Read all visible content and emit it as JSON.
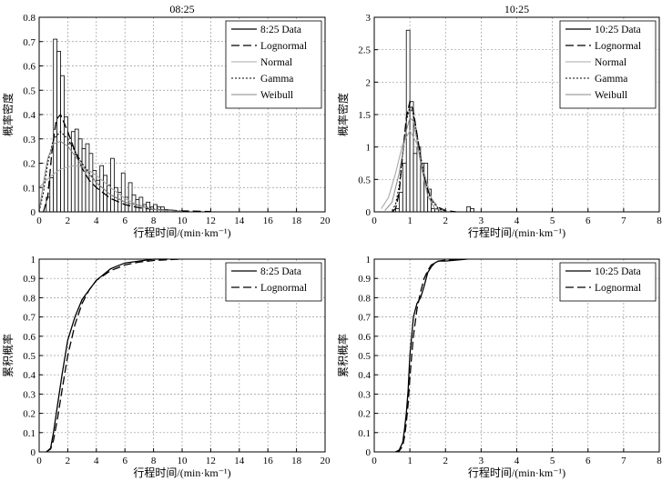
{
  "chart_data": [
    {
      "type": "bar",
      "title": "08:25",
      "xlabel": "行程时间/(min·km⁻¹)",
      "ylabel": "概率密度",
      "xlim": [
        0,
        20
      ],
      "ylim": [
        0,
        0.8
      ],
      "xticks": [
        "0",
        "2",
        "4",
        "6",
        "8",
        "10",
        "12",
        "14",
        "16",
        "18",
        "20"
      ],
      "yticks": [
        "0",
        "0.1",
        "0.2",
        "0.3",
        "0.4",
        "0.5",
        "0.6",
        "0.7",
        "0.8"
      ],
      "grid": true,
      "legend_position": "top-right",
      "legend": [
        "8:25 Data",
        "Lognormal",
        "Normal",
        "Gamma",
        "Weibull"
      ],
      "histogram": {
        "bin_width": 0.25,
        "x_start": 0.5,
        "values": [
          0.06,
          0.14,
          0.71,
          0.66,
          0.56,
          0.39,
          0.28,
          0.33,
          0.34,
          0.3,
          0.26,
          0.28,
          0.24,
          0.17,
          0.13,
          0.19,
          0.15,
          0.11,
          0.22,
          0.1,
          0.08,
          0.16,
          0.06,
          0.12,
          0.07,
          0.05,
          0.06,
          0.03,
          0.04,
          0.02,
          0.03,
          0.02,
          0.02,
          0.01
        ]
      },
      "series": [
        {
          "name": "Lognormal",
          "x": [
            0.3,
            0.6,
            0.9,
            1.2,
            1.5,
            2,
            2.5,
            3,
            3.5,
            4,
            5,
            6,
            7,
            8,
            10,
            12
          ],
          "y": [
            0,
            0.06,
            0.25,
            0.38,
            0.4,
            0.33,
            0.25,
            0.18,
            0.13,
            0.1,
            0.055,
            0.03,
            0.017,
            0.01,
            0.004,
            0.001
          ]
        },
        {
          "name": "Normal",
          "x": [
            0,
            0.5,
            1,
            1.5,
            2,
            2.5,
            3,
            3.5,
            4,
            4.5,
            5,
            6,
            7,
            8,
            9
          ],
          "y": [
            0.1,
            0.13,
            0.155,
            0.175,
            0.185,
            0.19,
            0.185,
            0.17,
            0.15,
            0.125,
            0.1,
            0.055,
            0.025,
            0.01,
            0.003
          ]
        },
        {
          "name": "Gamma",
          "x": [
            0,
            0.3,
            0.6,
            1,
            1.5,
            2,
            2.5,
            3,
            4,
            5,
            6,
            8,
            10
          ],
          "y": [
            0,
            0.08,
            0.2,
            0.3,
            0.33,
            0.3,
            0.25,
            0.2,
            0.12,
            0.07,
            0.04,
            0.012,
            0.003
          ]
        },
        {
          "name": "Weibull",
          "x": [
            0,
            0.3,
            0.6,
            1,
            1.5,
            2,
            2.5,
            3,
            4,
            5,
            6,
            8,
            10
          ],
          "y": [
            0,
            0.12,
            0.22,
            0.28,
            0.29,
            0.27,
            0.23,
            0.19,
            0.12,
            0.07,
            0.04,
            0.01,
            0.002
          ]
        }
      ]
    },
    {
      "type": "bar",
      "title": "10:25",
      "xlabel": "行程时间/(min·km⁻¹)",
      "ylabel": "概率密度",
      "xlim": [
        0,
        8
      ],
      "ylim": [
        0,
        3
      ],
      "xticks": [
        "0",
        "1",
        "2",
        "3",
        "4",
        "5",
        "6",
        "7",
        "8"
      ],
      "yticks": [
        "0",
        "0.5",
        "1",
        "1.5",
        "2",
        "2.5",
        "3"
      ],
      "grid": true,
      "legend_position": "top-right",
      "legend": [
        "10:25 Data",
        "Lognormal",
        "Normal",
        "Gamma",
        "Weibull"
      ],
      "histogram": {
        "bin_width": 0.1,
        "x_start": 0.6,
        "values": [
          0.05,
          0.3,
          0.75,
          2.8,
          1.7,
          0.9,
          1.0,
          0.75,
          0.75,
          0.35,
          0.05,
          0.05,
          0.0,
          0.0,
          0.0,
          0.0,
          0.0,
          0.0,
          0.0,
          0.0,
          0.08,
          0.05
        ]
      },
      "series": [
        {
          "name": "Lognormal",
          "x": [
            0.5,
            0.6,
            0.7,
            0.8,
            0.9,
            1.0,
            1.1,
            1.2,
            1.3,
            1.4,
            1.5,
            1.6,
            1.8,
            2.0,
            2.3
          ],
          "y": [
            0.0,
            0.05,
            0.3,
            0.9,
            1.45,
            1.7,
            1.55,
            1.2,
            0.85,
            0.55,
            0.35,
            0.2,
            0.07,
            0.02,
            0.0
          ]
        },
        {
          "name": "Normal",
          "x": [
            0.2,
            0.4,
            0.6,
            0.8,
            1.0,
            1.2,
            1.4,
            1.6,
            1.8,
            2.0
          ],
          "y": [
            0.05,
            0.22,
            0.6,
            1.05,
            1.25,
            1.05,
            0.6,
            0.22,
            0.05,
            0.01
          ]
        },
        {
          "name": "Gamma",
          "x": [
            0.5,
            0.6,
            0.7,
            0.8,
            0.9,
            1.0,
            1.1,
            1.2,
            1.3,
            1.4,
            1.5,
            1.6,
            1.8,
            2.0
          ],
          "y": [
            0.02,
            0.12,
            0.4,
            0.9,
            1.4,
            1.62,
            1.5,
            1.2,
            0.85,
            0.55,
            0.33,
            0.18,
            0.05,
            0.01
          ]
        },
        {
          "name": "Weibull",
          "x": [
            0.3,
            0.5,
            0.7,
            0.9,
            1.0,
            1.1,
            1.2,
            1.3,
            1.5,
            1.7,
            1.9
          ],
          "y": [
            0.02,
            0.15,
            0.6,
            1.25,
            1.45,
            1.4,
            1.1,
            0.75,
            0.25,
            0.05,
            0.01
          ]
        }
      ]
    },
    {
      "type": "line",
      "title": "",
      "xlabel": "行程时间/(min·km⁻¹)",
      "ylabel": "累积概率",
      "xlim": [
        0,
        20
      ],
      "ylim": [
        0,
        1
      ],
      "xticks": [
        "0",
        "2",
        "4",
        "6",
        "8",
        "10",
        "12",
        "14",
        "16",
        "18",
        "20"
      ],
      "yticks": [
        "0",
        "0.1",
        "0.2",
        "0.3",
        "0.4",
        "0.5",
        "0.6",
        "0.7",
        "0.8",
        "0.9",
        "1"
      ],
      "grid": true,
      "legend_position": "top-right",
      "legend": [
        "8:25 Data",
        "Lognormal"
      ],
      "series": [
        {
          "name": "8:25 Data",
          "x": [
            0.5,
            0.8,
            1.0,
            1.3,
            1.6,
            2.0,
            2.5,
            3.0,
            3.5,
            4.0,
            5.0,
            6.0,
            7.0,
            8.0,
            9.0
          ],
          "y": [
            0.0,
            0.02,
            0.1,
            0.25,
            0.4,
            0.58,
            0.7,
            0.79,
            0.84,
            0.89,
            0.95,
            0.98,
            0.99,
            1.0,
            1.0
          ]
        },
        {
          "name": "Lognormal",
          "x": [
            0.5,
            0.8,
            1.0,
            1.3,
            1.6,
            2.0,
            2.5,
            3.0,
            3.5,
            4.0,
            5.0,
            6.0,
            7.0,
            8.0,
            9.0,
            10.0
          ],
          "y": [
            0.0,
            0.015,
            0.06,
            0.18,
            0.32,
            0.5,
            0.66,
            0.77,
            0.84,
            0.89,
            0.94,
            0.97,
            0.985,
            0.993,
            0.997,
            1.0
          ]
        }
      ]
    },
    {
      "type": "line",
      "title": "",
      "xlabel": "行程时间/(min·km⁻¹)",
      "ylabel": "累积概率",
      "xlim": [
        0,
        8
      ],
      "ylim": [
        0,
        1
      ],
      "xticks": [
        "0",
        "1",
        "2",
        "3",
        "4",
        "5",
        "6",
        "7",
        "8"
      ],
      "yticks": [
        "0",
        "0.1",
        "0.2",
        "0.3",
        "0.4",
        "0.5",
        "0.6",
        "0.7",
        "0.8",
        "0.9",
        "1"
      ],
      "grid": true,
      "legend_position": "top-right",
      "legend": [
        "10:25 Data",
        "Lognormal"
      ],
      "series": [
        {
          "name": "10:25 Data",
          "x": [
            0.6,
            0.7,
            0.8,
            0.85,
            0.9,
            0.95,
            1.0,
            1.05,
            1.1,
            1.2,
            1.3,
            1.4,
            1.5,
            1.6,
            1.7,
            1.8,
            2.0,
            2.6
          ],
          "y": [
            0.0,
            0.01,
            0.05,
            0.12,
            0.2,
            0.32,
            0.5,
            0.6,
            0.7,
            0.77,
            0.8,
            0.86,
            0.93,
            0.96,
            0.98,
            0.99,
            0.99,
            1.0
          ]
        },
        {
          "name": "Lognormal",
          "x": [
            0.6,
            0.7,
            0.8,
            0.85,
            0.9,
            0.95,
            1.0,
            1.05,
            1.1,
            1.2,
            1.3,
            1.4,
            1.5,
            1.6,
            1.8,
            2.0,
            2.4
          ],
          "y": [
            0.0,
            0.005,
            0.03,
            0.08,
            0.15,
            0.25,
            0.38,
            0.5,
            0.6,
            0.74,
            0.83,
            0.9,
            0.94,
            0.97,
            0.99,
            0.995,
            1.0
          ]
        }
      ]
    }
  ]
}
